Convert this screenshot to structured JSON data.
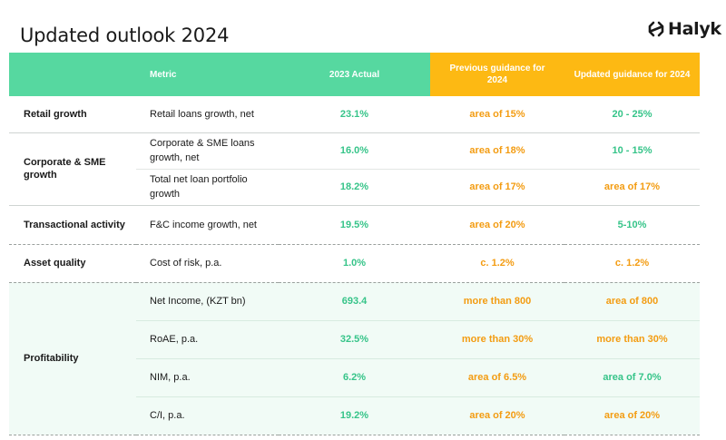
{
  "title": "Updated outlook 2024",
  "logo": {
    "text": "Halyk",
    "icon": "halyk-logo-icon"
  },
  "colors": {
    "header_green": "#56d8a0",
    "header_yellow": "#fdb913",
    "value_green": "#36c489",
    "value_orange": "#f39c12",
    "tint": "#f1fbf6"
  },
  "headers": {
    "metric": "Metric",
    "actual": "2023 Actual",
    "previous": "Previous guidance for 2024",
    "updated": "Updated guidance for 2024"
  },
  "groups": [
    {
      "category": "Retail growth",
      "rows": [
        {
          "metric": "Retail loans growth, net",
          "actual": "23.1%",
          "previous": "area of 15%",
          "updated": "20 - 25%",
          "updated_color": "green"
        }
      ]
    },
    {
      "category": "Corporate & SME growth",
      "rows": [
        {
          "metric": "Corporate & SME loans growth, net",
          "actual": "16.0%",
          "previous": "area of 18%",
          "updated": "10 - 15%",
          "updated_color": "green"
        },
        {
          "metric": "Total net loan portfolio growth",
          "actual": "18.2%",
          "previous": "area of 17%",
          "updated": "area of 17%",
          "updated_color": "orange"
        }
      ]
    },
    {
      "category": "Transactional activity",
      "rows": [
        {
          "metric": "F&C income growth, net",
          "actual": "19.5%",
          "previous": "area of 20%",
          "updated": "5-10%",
          "updated_color": "green"
        }
      ]
    },
    {
      "category": "Asset quality",
      "rows": [
        {
          "metric": "Cost of risk, p.a.",
          "actual": "1.0%",
          "previous": "c. 1.2%",
          "updated": "c. 1.2%",
          "updated_color": "orange"
        }
      ]
    },
    {
      "category": "Profitability",
      "rows": [
        {
          "metric": "Net Income, (KZT bn)",
          "actual": "693.4",
          "previous": "more than 800",
          "updated": "area of 800",
          "updated_color": "orange"
        },
        {
          "metric": "RoAE, p.a.",
          "actual": "32.5%",
          "previous": "more than 30%",
          "updated": "more than 30%",
          "updated_color": "orange"
        },
        {
          "metric": "NIM, p.a.",
          "actual": "6.2%",
          "previous": "area of  6.5%",
          "updated": "area of 7.0%",
          "updated_color": "green"
        },
        {
          "metric": "C/I, p.a.",
          "actual": "19.2%",
          "previous": "area of  20%",
          "updated": "area of  20%",
          "updated_color": "orange"
        }
      ]
    }
  ]
}
